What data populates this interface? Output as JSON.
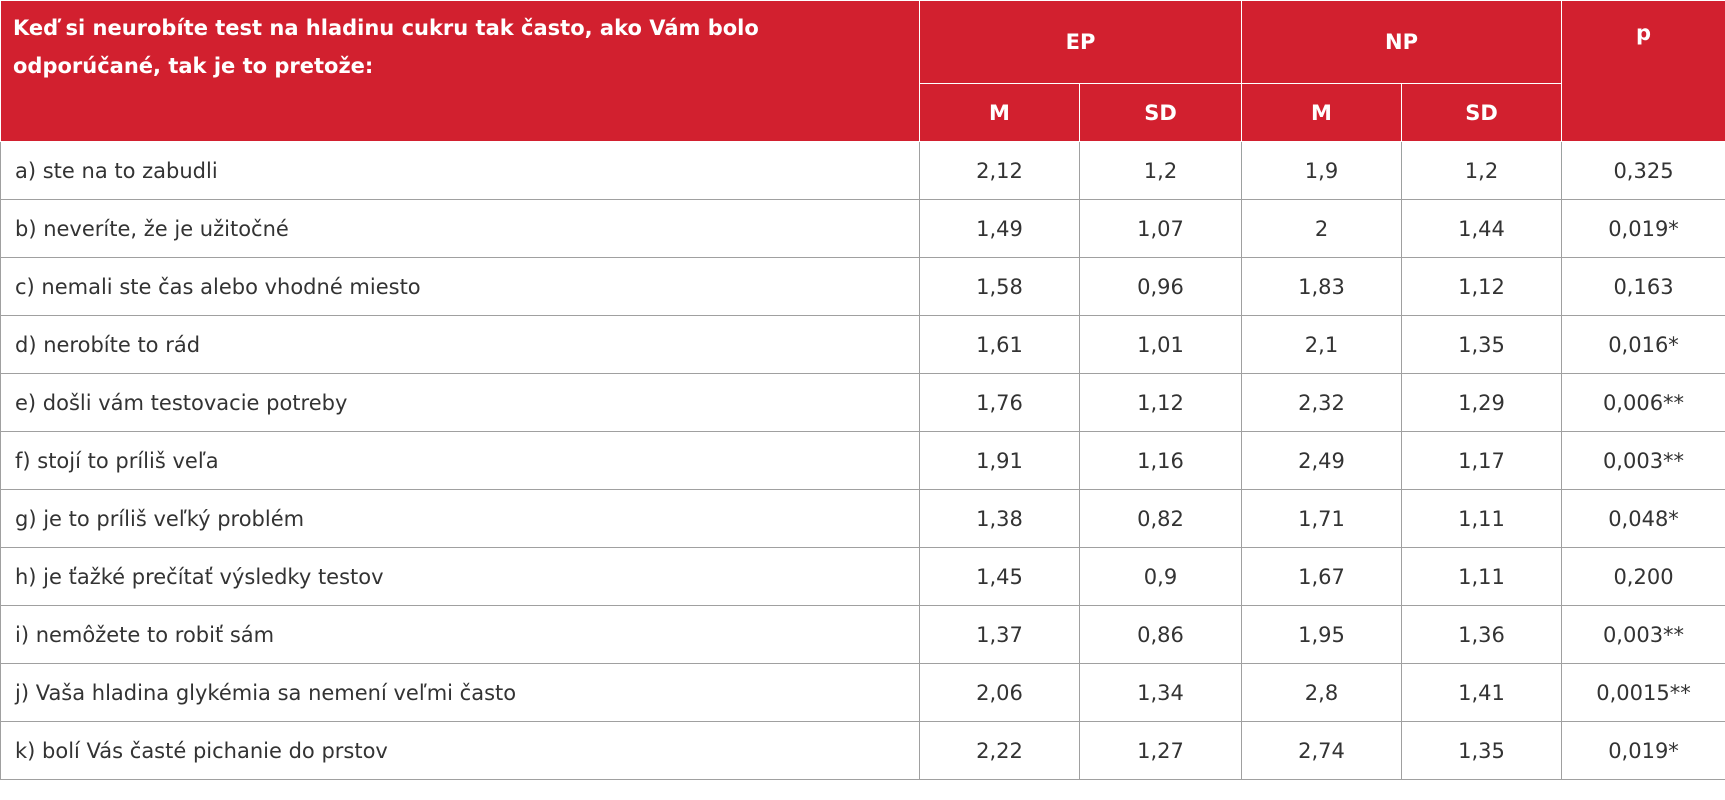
{
  "header": {
    "question": "Keď si neurobíte test na hladinu cukru tak často, ako Vám bolo odporúčané, tak je to pretože:",
    "groups": [
      "EP",
      "NP"
    ],
    "p": "p",
    "subheaders": [
      "M",
      "SD",
      "M",
      "SD"
    ]
  },
  "table": {
    "rows": [
      [
        "a) ste na to zabudli",
        "2,12",
        "1,2",
        "1,9",
        "1,2",
        "0,325"
      ],
      [
        "b) neveríte, že je užitočné",
        "1,49",
        "1,07",
        "2",
        "1,44",
        "0,019*"
      ],
      [
        "c) nemali ste čas alebo vhodné miesto",
        "1,58",
        "0,96",
        "1,83",
        "1,12",
        "0,163"
      ],
      [
        "d) nerobíte to rád",
        "1,61",
        "1,01",
        "2,1",
        "1,35",
        "0,016*"
      ],
      [
        "e) došli vám testovacie potreby",
        "1,76",
        "1,12",
        "2,32",
        "1,29",
        "0,006**"
      ],
      [
        "f) stojí to príliš veľa",
        "1,91",
        "1,16",
        "2,49",
        "1,17",
        "0,003**"
      ],
      [
        "g) je to príliš veľký problém",
        "1,38",
        "0,82",
        "1,71",
        "1,11",
        "0,048*"
      ],
      [
        "h) je ťažké prečítať výsledky testov",
        "1,45",
        "0,9",
        "1,67",
        "1,11",
        "0,200"
      ],
      [
        "i) nemôžete to robiť sám",
        "1,37",
        "0,86",
        "1,95",
        "1,36",
        "0,003**"
      ],
      [
        "j) Vaša hladina glykémia sa nemení veľmi často",
        "2,06",
        "1,34",
        "2,8",
        "1,41",
        "0,0015**"
      ],
      [
        "k) bolí Vás časté pichanie do prstov",
        "2,22",
        "1,27",
        "2,74",
        "1,35",
        "0,019*"
      ]
    ]
  }
}
